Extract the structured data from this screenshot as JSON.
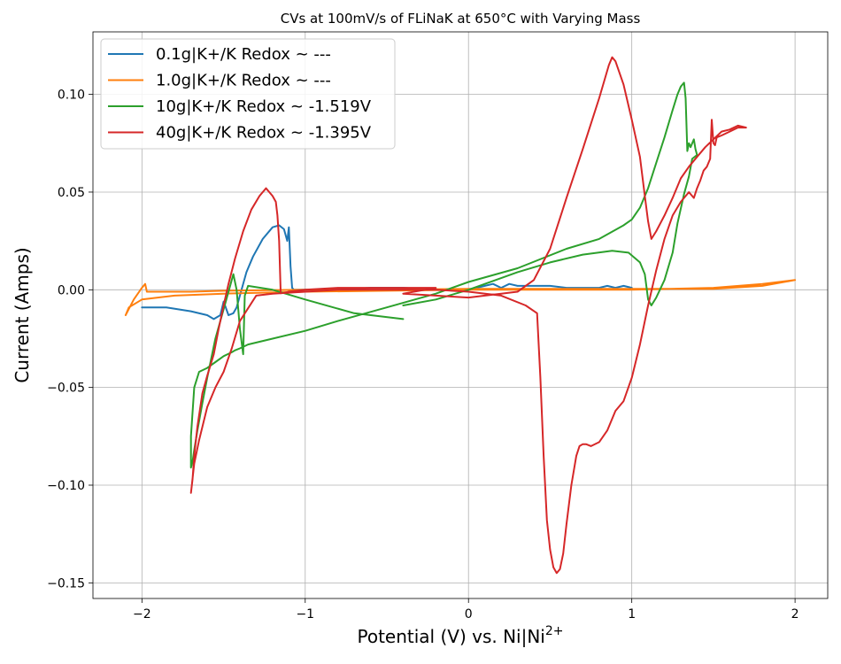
{
  "chart_data": {
    "type": "line",
    "title": "CVs at 100mV/s of FLiNaK at 650°C with Varying Mass",
    "xlabel": "Potential (V) vs. Ni|Ni",
    "xlabel_superscript": "2+",
    "ylabel": "Current (Amps)",
    "xlim": [
      -2.3,
      2.2
    ],
    "ylim": [
      -0.158,
      0.132
    ],
    "xticks": [
      -2,
      -1,
      0,
      1,
      2
    ],
    "xtick_labels": [
      "−2",
      "−1",
      "0",
      "1",
      "2"
    ],
    "yticks": [
      -0.15,
      -0.1,
      -0.05,
      0.0,
      0.05,
      0.1
    ],
    "ytick_labels": [
      "−0.15",
      "−0.10",
      "−0.05",
      "0.00",
      "0.05",
      "0.10"
    ],
    "grid": true,
    "legend_position": "top-left",
    "series": [
      {
        "name": "0.1g|K+/K Redox ~ ---",
        "color": "#1f77b4",
        "x": [
          -2.0,
          -1.85,
          -1.7,
          -1.6,
          -1.56,
          -1.52,
          -1.5,
          -1.47,
          -1.44,
          -1.42,
          -1.4,
          -1.36,
          -1.32,
          -1.26,
          -1.2,
          -1.16,
          -1.13,
          -1.11,
          -1.1,
          -1.09,
          -1.08,
          -1.07,
          -1.0,
          -0.8,
          -0.6,
          -0.4,
          -0.2,
          0.0,
          0.1,
          0.15,
          0.2,
          0.25,
          0.3,
          0.4,
          0.5,
          0.6,
          0.7,
          0.8,
          0.85,
          0.9,
          0.95,
          1.0
        ],
        "y": [
          -0.009,
          -0.009,
          -0.011,
          -0.013,
          -0.015,
          -0.013,
          -0.006,
          -0.013,
          -0.012,
          -0.009,
          -0.003,
          0.009,
          0.017,
          0.026,
          0.032,
          0.033,
          0.031,
          0.025,
          0.032,
          0.012,
          0.001,
          0.0,
          0.0,
          0.0,
          0.001,
          0.001,
          0.0,
          0.0,
          0.002,
          0.003,
          0.001,
          0.003,
          0.002,
          0.002,
          0.002,
          0.001,
          0.001,
          0.001,
          0.002,
          0.001,
          0.002,
          0.001
        ]
      },
      {
        "name": "1.0g|K+/K Redox ~ ---",
        "color": "#ff7f0e",
        "x": [
          -2.1,
          -2.05,
          -2.0,
          -1.98,
          -1.97,
          -1.9,
          -1.7,
          -1.5,
          -1.0,
          -0.5,
          0.0,
          0.5,
          1.0,
          1.5,
          1.8,
          2.0,
          1.8,
          1.5,
          1.0,
          0.5,
          0.0,
          -0.5,
          -1.0,
          -1.5,
          -1.8,
          -2.0,
          -2.08,
          -2.1
        ],
        "y": [
          -0.013,
          -0.005,
          0.001,
          0.003,
          -0.001,
          -0.001,
          -0.001,
          -0.0005,
          0.0,
          0.0,
          0.0005,
          0.0005,
          0.0005,
          0.0005,
          0.002,
          0.005,
          0.003,
          0.001,
          0.0,
          0.0,
          0.0,
          -0.0005,
          -0.001,
          -0.002,
          -0.003,
          -0.005,
          -0.009,
          -0.013
        ]
      },
      {
        "name": "10g|K+/K Redox ~ -1.519V",
        "color": "#2ca02c",
        "x": [
          -0.4,
          -0.7,
          -1.0,
          -1.2,
          -1.35,
          -1.37,
          -1.38,
          -1.4,
          -1.42,
          -1.44,
          -1.5,
          -1.55,
          -1.6,
          -1.63,
          -1.66,
          -1.68,
          -1.69,
          -1.7,
          -1.7,
          -1.68,
          -1.65,
          -1.6,
          -1.55,
          -1.5,
          -1.45,
          -1.43,
          -1.4,
          -1.35,
          -1.2,
          -1.0,
          -0.8,
          -0.5,
          -0.2,
          0.0,
          0.3,
          0.6,
          0.8,
          0.95,
          1.0,
          1.05,
          1.1,
          1.15,
          1.2,
          1.25,
          1.28,
          1.3,
          1.32,
          1.33,
          1.34,
          1.35,
          1.36,
          1.38,
          1.39,
          1.4,
          1.37,
          1.35,
          1.32,
          1.28,
          1.25,
          1.2,
          1.15,
          1.12,
          1.1,
          1.08,
          1.05,
          0.98,
          0.88,
          0.7,
          0.5,
          0.3,
          0.1,
          0.0,
          -0.2,
          -0.4
        ],
        "y": [
          -0.015,
          -0.012,
          -0.005,
          0.0,
          0.002,
          -0.003,
          -0.033,
          -0.02,
          0.0,
          0.008,
          -0.01,
          -0.025,
          -0.045,
          -0.058,
          -0.072,
          -0.082,
          -0.088,
          -0.091,
          -0.075,
          -0.05,
          -0.042,
          -0.04,
          -0.037,
          -0.034,
          -0.032,
          -0.031,
          -0.03,
          -0.028,
          -0.025,
          -0.021,
          -0.016,
          -0.009,
          -0.002,
          0.004,
          0.011,
          0.021,
          0.026,
          0.033,
          0.036,
          0.042,
          0.052,
          0.065,
          0.078,
          0.092,
          0.1,
          0.104,
          0.106,
          0.098,
          0.071,
          0.075,
          0.073,
          0.077,
          0.072,
          0.069,
          0.067,
          0.058,
          0.049,
          0.034,
          0.019,
          0.005,
          -0.004,
          -0.008,
          -0.005,
          0.008,
          0.014,
          0.019,
          0.02,
          0.018,
          0.014,
          0.009,
          0.003,
          0.0,
          -0.005,
          -0.008
        ]
      },
      {
        "name": "40g|K+/K Redox ~ -1.395V",
        "color": "#d62728",
        "x": [
          -0.4,
          -0.2,
          -0.5,
          -0.8,
          -1.0,
          -1.1,
          -1.15,
          -1.16,
          -1.17,
          -1.18,
          -1.2,
          -1.24,
          -1.28,
          -1.33,
          -1.38,
          -1.43,
          -1.47,
          -1.5,
          -1.53,
          -1.56,
          -1.6,
          -1.63,
          -1.66,
          -1.68,
          -1.69,
          -1.7,
          -1.68,
          -1.65,
          -1.6,
          -1.55,
          -1.5,
          -1.45,
          -1.4,
          -1.3,
          -1.2,
          -1.0,
          -0.8,
          -0.5,
          -0.2,
          0.0,
          0.2,
          0.35,
          0.42,
          0.44,
          0.46,
          0.48,
          0.5,
          0.52,
          0.54,
          0.56,
          0.58,
          0.6,
          0.63,
          0.66,
          0.68,
          0.7,
          0.72,
          0.75,
          0.8,
          0.85,
          0.9,
          0.95,
          1.0,
          1.05,
          1.1,
          1.15,
          1.2,
          1.25,
          1.3,
          1.35,
          1.38,
          1.4,
          1.42,
          1.44,
          1.46,
          1.48,
          1.49,
          1.5,
          1.51,
          1.52,
          1.55,
          1.6,
          1.65,
          1.7,
          1.65,
          1.6,
          1.55,
          1.5,
          1.45,
          1.4,
          1.35,
          1.3,
          1.25,
          1.2,
          1.15,
          1.12,
          1.1,
          1.08,
          1.05,
          1.0,
          0.95,
          0.9,
          0.88,
          0.86,
          0.8,
          0.7,
          0.6,
          0.5,
          0.4,
          0.3,
          0.2,
          0.1,
          0.0,
          -0.2,
          -0.4
        ],
        "y": [
          -0.002,
          0.001,
          0.001,
          0.001,
          0.0,
          -0.001,
          -0.002,
          0.025,
          0.038,
          0.045,
          0.048,
          0.052,
          0.048,
          0.041,
          0.03,
          0.016,
          0.003,
          -0.008,
          -0.02,
          -0.033,
          -0.044,
          -0.053,
          -0.07,
          -0.085,
          -0.097,
          -0.104,
          -0.089,
          -0.077,
          -0.06,
          -0.05,
          -0.042,
          -0.03,
          -0.016,
          -0.003,
          -0.002,
          -0.001,
          0.0,
          0.0,
          0.0,
          -0.001,
          -0.003,
          -0.008,
          -0.012,
          -0.045,
          -0.085,
          -0.118,
          -0.133,
          -0.142,
          -0.145,
          -0.143,
          -0.135,
          -0.12,
          -0.1,
          -0.085,
          -0.08,
          -0.079,
          -0.079,
          -0.08,
          -0.078,
          -0.072,
          -0.062,
          -0.057,
          -0.045,
          -0.028,
          -0.008,
          0.01,
          0.026,
          0.038,
          0.045,
          0.05,
          0.047,
          0.052,
          0.056,
          0.061,
          0.063,
          0.067,
          0.087,
          0.075,
          0.074,
          0.078,
          0.079,
          0.081,
          0.083,
          0.083,
          0.084,
          0.082,
          0.081,
          0.077,
          0.073,
          0.068,
          0.063,
          0.057,
          0.047,
          0.038,
          0.03,
          0.026,
          0.035,
          0.048,
          0.068,
          0.087,
          0.105,
          0.117,
          0.119,
          0.115,
          0.098,
          0.072,
          0.047,
          0.021,
          0.005,
          -0.001,
          -0.002,
          -0.003,
          -0.004,
          -0.003,
          -0.002
        ]
      }
    ]
  }
}
